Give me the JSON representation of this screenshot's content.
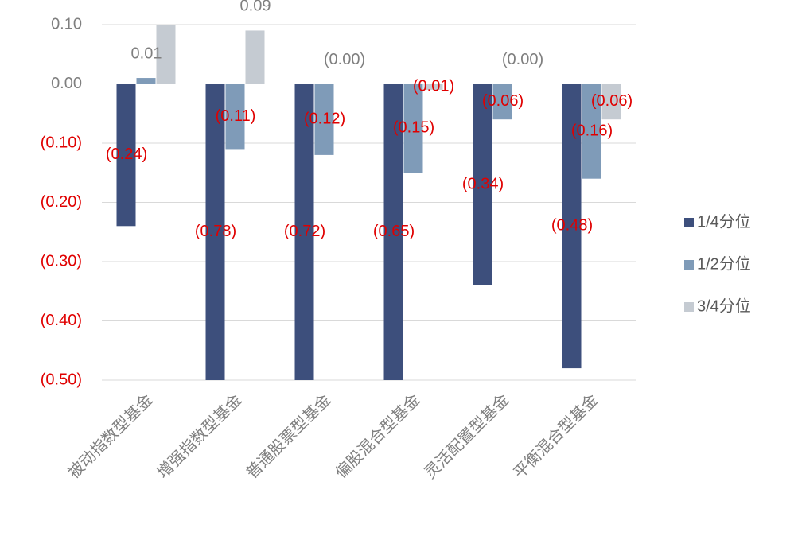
{
  "chart_data": {
    "type": "bar",
    "categories": [
      "被动指数型基金",
      "增强指数型基金",
      "普通股票型基金",
      "偏股混合型基金",
      "灵活配置型基金",
      "平衡混合型基金"
    ],
    "series": [
      {
        "name": "1/4分位",
        "color": "#3d4f7c",
        "values": [
          -0.24,
          -0.78,
          -0.72,
          -0.65,
          -0.34,
          -0.48
        ],
        "value_labels": [
          "(0.24)",
          "(0.78)",
          "(0.72)",
          "(0.65)",
          "(0.34)",
          "(0.48)"
        ]
      },
      {
        "name": "1/2分位",
        "color": "#7f9bb8",
        "values": [
          0.01,
          -0.11,
          -0.12,
          -0.15,
          -0.06,
          -0.16
        ],
        "value_labels": [
          "0.01",
          "(0.11)",
          "(0.12)",
          "(0.15)",
          "(0.06)",
          "(0.16)"
        ]
      },
      {
        "name": "3/4分位",
        "color": "#c5cbd2",
        "values": [
          0.1,
          0.09,
          -0.0,
          -0.01,
          -0.0,
          -0.06
        ],
        "value_labels": [
          null,
          "0.09",
          "(0.00)",
          "(0.01)",
          "(0.00)",
          "(0.06)"
        ]
      }
    ],
    "ylim": [
      -0.5,
      0.1
    ],
    "yticks": [
      {
        "value": 0.1,
        "label": "0.10"
      },
      {
        "value": 0,
        "label": "0.00"
      },
      {
        "value": -0.1,
        "label": "(0.10)"
      },
      {
        "value": -0.2,
        "label": "(0.20)"
      },
      {
        "value": -0.3,
        "label": "(0.30)"
      },
      {
        "value": -0.4,
        "label": "(0.40)"
      },
      {
        "value": -0.5,
        "label": "(0.50)"
      }
    ],
    "grid": true,
    "legend": "right"
  }
}
